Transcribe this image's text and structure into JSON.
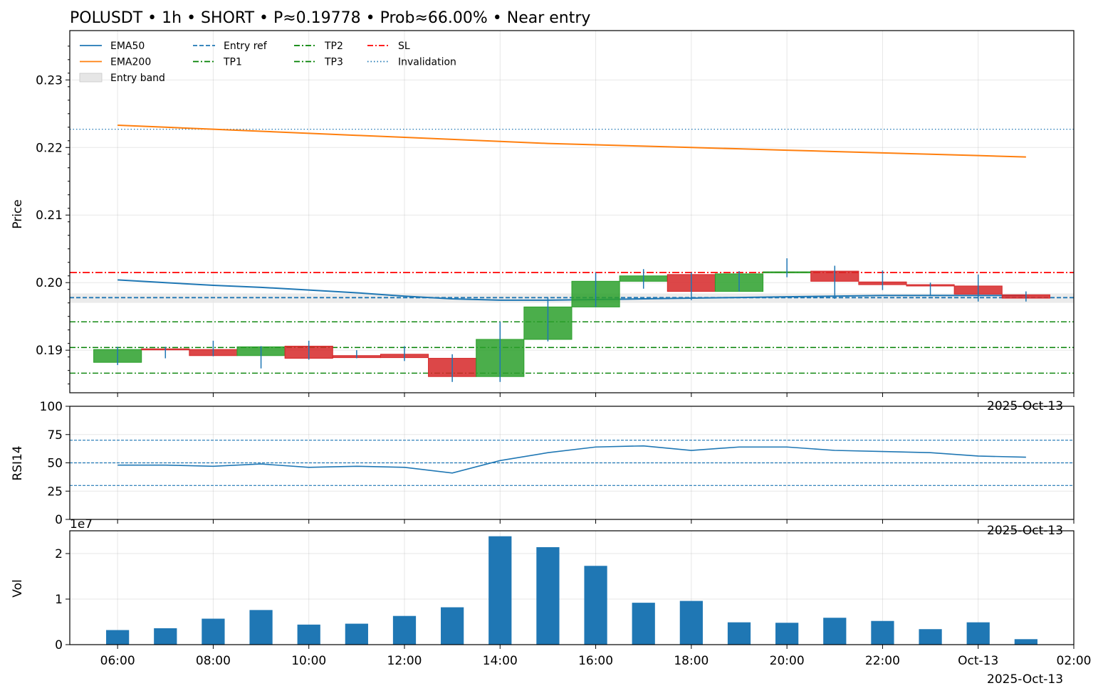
{
  "title": "POLUSDT • 1h • SHORT • P≈0.19778 • Prob≈66.00% • Near entry",
  "watermark": "2025-Oct-13",
  "colors": {
    "up": "#2ca02c",
    "down": "#d62728",
    "ema50": "#1f77b4",
    "ema200": "#ff7f0e",
    "entry": "#1f77b4",
    "tp": "#008000",
    "sl": "#ff0000",
    "invalidation": "#1f77b4",
    "rsi": "#1f77b4",
    "vol": "#1f77b4",
    "band": "#e6e6e6"
  },
  "legend": [
    {
      "label": "EMA50",
      "style": "solid",
      "color": "#1f77b4"
    },
    {
      "label": "EMA200",
      "style": "solid",
      "color": "#ff7f0e"
    },
    {
      "label": "Entry band",
      "style": "patch",
      "color": "#e6e6e6"
    },
    {
      "label": "Entry ref",
      "style": "dashed",
      "color": "#1f77b4"
    },
    {
      "label": "TP1",
      "style": "dashdot",
      "color": "#008000"
    },
    {
      "label": "TP2",
      "style": "dashdot",
      "color": "#008000"
    },
    {
      "label": "TP3",
      "style": "dashdot",
      "color": "#008000"
    },
    {
      "label": "SL",
      "style": "dashdot",
      "color": "#ff0000"
    },
    {
      "label": "Invalidation",
      "style": "dotted",
      "color": "#1f77b4"
    }
  ],
  "chart_data": [
    {
      "type": "candlestick",
      "ylabel": "Price",
      "ylim": [
        0.1837,
        0.2373
      ],
      "xlim": [
        "05:00",
        "02:00"
      ],
      "x_ticks": [
        "06:00",
        "08:00",
        "10:00",
        "12:00",
        "14:00",
        "16:00",
        "18:00",
        "20:00",
        "22:00",
        "Oct-13",
        "02:00"
      ],
      "y_ticks": [
        0.19,
        0.2,
        0.21,
        0.22,
        0.23
      ],
      "x_hours": [
        6,
        7,
        8,
        9,
        10,
        11,
        12,
        13,
        14,
        15,
        16,
        17,
        18,
        19,
        20,
        21,
        22,
        23,
        24,
        25
      ],
      "open": [
        0.1882,
        0.1902,
        0.1901,
        0.1892,
        0.1906,
        0.1892,
        0.1894,
        0.1888,
        0.1861,
        0.1916,
        0.1964,
        0.2002,
        0.2012,
        0.1987,
        0.2015,
        0.2017,
        0.2001,
        0.1997,
        0.1995,
        0.1982
      ],
      "high": [
        0.1905,
        0.1905,
        0.1914,
        0.1906,
        0.1914,
        0.19,
        0.1906,
        0.1894,
        0.1942,
        0.1978,
        0.2015,
        0.202,
        0.2015,
        0.2017,
        0.2036,
        0.2025,
        0.2018,
        0.2,
        0.2012,
        0.1987
      ],
      "low": [
        0.1878,
        0.1888,
        0.1891,
        0.1873,
        0.1886,
        0.1888,
        0.1884,
        0.1853,
        0.1853,
        0.1913,
        0.1964,
        0.1991,
        0.1974,
        0.1987,
        0.2008,
        0.1976,
        0.1989,
        0.198,
        0.1972,
        0.1972
      ],
      "close": [
        0.1901,
        0.1901,
        0.1892,
        0.1905,
        0.1888,
        0.1889,
        0.1889,
        0.1861,
        0.1916,
        0.1964,
        0.2002,
        0.201,
        0.1987,
        0.2013,
        0.2016,
        0.2002,
        0.1997,
        0.1995,
        0.1983,
        0.1977
      ],
      "ema50": [
        0.2004,
        0.2,
        0.1996,
        0.1993,
        0.1989,
        0.1985,
        0.198,
        0.1976,
        0.1974,
        0.1974,
        0.1975,
        0.1976,
        0.1977,
        0.1978,
        0.1979,
        0.198,
        0.1981,
        0.1981,
        0.1981,
        0.1981
      ],
      "ema200": [
        0.2233,
        0.223,
        0.2227,
        0.2224,
        0.2221,
        0.2218,
        0.2215,
        0.2212,
        0.2209,
        0.2206,
        0.2204,
        0.2202,
        0.22,
        0.2198,
        0.2196,
        0.2194,
        0.2192,
        0.219,
        0.2188,
        0.2186
      ],
      "levels": {
        "entry_band": [
          0.197,
          0.1984
        ],
        "entry_ref": 0.19778,
        "tp1": 0.1904,
        "tp2": 0.1942,
        "tp3": 0.1866,
        "sl": 0.2015,
        "invalidation": 0.2227
      },
      "grid": true,
      "legend_position": "top-left"
    },
    {
      "type": "line",
      "ylabel": "RSI14",
      "ylim": [
        0,
        100
      ],
      "y_ticks": [
        0,
        25,
        50,
        75,
        100
      ],
      "x_hours": [
        6,
        7,
        8,
        9,
        10,
        11,
        12,
        13,
        14,
        15,
        16,
        17,
        18,
        19,
        20,
        21,
        22,
        23,
        24,
        25
      ],
      "values": [
        48,
        48,
        47,
        49,
        46,
        47,
        46,
        41,
        52,
        59,
        64,
        65,
        61,
        64,
        64,
        61,
        60,
        59,
        56,
        55
      ],
      "reference_lines": [
        70,
        50,
        30
      ],
      "grid": true
    },
    {
      "type": "bar",
      "ylabel": "Vol",
      "scale_label": "1e7",
      "ylim": [
        0,
        2.5
      ],
      "y_ticks": [
        0,
        1,
        2
      ],
      "x_hours": [
        6,
        7,
        8,
        9,
        10,
        11,
        12,
        13,
        14,
        15,
        16,
        17,
        18,
        19,
        20,
        21,
        22,
        23,
        24,
        25
      ],
      "values": [
        0.32,
        0.36,
        0.57,
        0.76,
        0.44,
        0.46,
        0.63,
        0.82,
        2.38,
        2.14,
        1.73,
        0.92,
        0.96,
        0.49,
        0.48,
        0.59,
        0.52,
        0.34,
        0.49,
        0.12
      ],
      "grid": true
    }
  ]
}
